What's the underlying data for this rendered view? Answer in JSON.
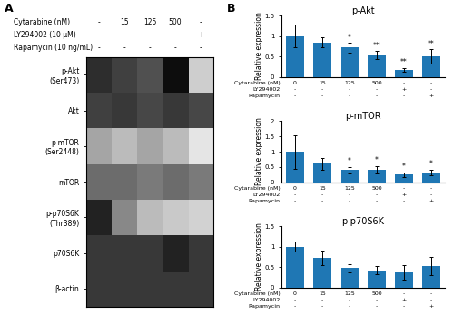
{
  "chart_data": [
    {
      "type": "heatmap",
      "panel": "A",
      "row_labels": [
        "p-Akt\n(Ser473)",
        "Akt",
        "p-mTOR\n(Ser2448)",
        "mTOR",
        "p-p70S6K\n(Thr389)",
        "p70S6K",
        "β-actin"
      ],
      "x_label_rows": [
        {
          "name": "Cytarabine (nM)",
          "labels": [
            "-",
            "15",
            "125",
            "500",
            "-"
          ]
        },
        {
          "name": "LY294002 (10 μM)",
          "labels": [
            "-",
            "-",
            "-",
            "-",
            "+"
          ]
        },
        {
          "name": "Rapamycin (10 ng/mL)",
          "labels": [
            "-",
            "-",
            "-",
            "-",
            "-"
          ]
        }
      ],
      "cells": [
        [
          0.85,
          0.8,
          0.75,
          0.95,
          0.3
        ],
        [
          0.8,
          0.82,
          0.78,
          0.82,
          0.78
        ],
        [
          0.45,
          0.38,
          0.45,
          0.38,
          0.18
        ],
        [
          0.65,
          0.65,
          0.6,
          0.65,
          0.6
        ],
        [
          0.88,
          0.55,
          0.38,
          0.32,
          0.28
        ],
        [
          0.82,
          0.82,
          0.82,
          0.88,
          0.82
        ],
        [
          0.82,
          0.82,
          0.82,
          0.82,
          0.82
        ]
      ],
      "color_range": [
        0,
        1
      ],
      "tick_labels": "y"
    },
    {
      "type": "bar",
      "panel": "B",
      "title": "p-Akt",
      "ylabel": "Relative expression",
      "categories": [
        null,
        null,
        null,
        null,
        null,
        null
      ],
      "values": [
        1.0,
        0.85,
        0.72,
        0.53,
        0.17,
        0.5
      ],
      "errors": [
        0.28,
        0.12,
        0.12,
        0.1,
        0.05,
        0.18
      ],
      "annotations": [
        null,
        null,
        "*",
        "**",
        "**",
        "**"
      ],
      "x_label_rows": [
        {
          "name": "Cytarabine (nM)",
          "labels": [
            "0",
            "15",
            "125",
            "500",
            "-",
            "-"
          ]
        },
        {
          "name": "LY294002",
          "labels": [
            "-",
            "-",
            "-",
            "-",
            "+",
            "-"
          ]
        },
        {
          "name": "Rapamycin",
          "labels": [
            "-",
            "-",
            "-",
            "-",
            "-",
            "+"
          ]
        }
      ],
      "ylim": [
        0,
        1.5
      ],
      "yticks": [
        0,
        0.5,
        1,
        1.5
      ],
      "tick_labels": "y"
    },
    {
      "type": "bar",
      "title": "p-mTOR",
      "ylabel": "Relative expression",
      "categories": [
        null,
        null,
        null,
        null,
        null,
        null
      ],
      "values": [
        1.0,
        0.6,
        0.4,
        0.42,
        0.25,
        0.32
      ],
      "errors": [
        0.55,
        0.18,
        0.1,
        0.12,
        0.08,
        0.1
      ],
      "annotations": [
        null,
        null,
        "*",
        "*",
        "*",
        "*"
      ],
      "x_label_rows": [
        {
          "name": "Cytarabine (nM)",
          "labels": [
            "0",
            "15",
            "125",
            "500",
            "-",
            "-"
          ]
        },
        {
          "name": "LY294002",
          "labels": [
            "-",
            "-",
            "-",
            "-",
            "+",
            "-"
          ]
        },
        {
          "name": "Rapamycin",
          "labels": [
            "-",
            "-",
            "-",
            "-",
            "-",
            "+"
          ]
        }
      ],
      "ylim": [
        0,
        2
      ],
      "yticks": [
        0,
        0.5,
        1,
        1.5,
        2
      ],
      "tick_labels": "y"
    },
    {
      "type": "bar",
      "title": "p-p70S6K",
      "ylabel": "Relative expression",
      "categories": [
        null,
        null,
        null,
        null,
        null,
        null
      ],
      "values": [
        1.0,
        0.73,
        0.48,
        0.42,
        0.38,
        0.52
      ],
      "errors": [
        0.12,
        0.18,
        0.1,
        0.1,
        0.18,
        0.22
      ],
      "x_label_rows": [
        {
          "name": "Cytarabine (nM)",
          "labels": [
            "0",
            "15",
            "125",
            "500",
            "-",
            "-"
          ]
        },
        {
          "name": "LY294002",
          "labels": [
            "-",
            "-",
            "-",
            "-",
            "+",
            "-"
          ]
        },
        {
          "name": "Rapamycin",
          "labels": [
            "-",
            "-",
            "-",
            "-",
            "-",
            "+"
          ]
        }
      ],
      "ylim": [
        0,
        1.5
      ],
      "yticks": [
        0,
        0.5,
        1,
        1.5
      ],
      "tick_labels": "y"
    }
  ]
}
